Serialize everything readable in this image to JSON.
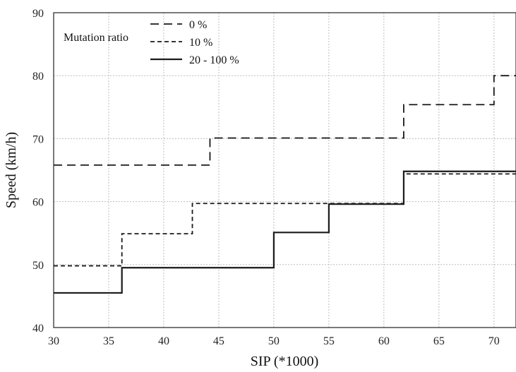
{
  "chart_data": {
    "type": "line",
    "step": "post",
    "title": "",
    "xlabel": "SIP (*1000)",
    "ylabel": "Speed (km/h)",
    "xlim": [
      30,
      72
    ],
    "ylim": [
      40,
      90
    ],
    "xticks": [
      30,
      35,
      40,
      45,
      50,
      55,
      60,
      65,
      70
    ],
    "yticks": [
      40,
      50,
      60,
      70,
      80,
      90
    ],
    "grid": true,
    "legend": {
      "title": "Mutation ratio",
      "placement": "top-left"
    },
    "series": [
      {
        "name": "0 %",
        "style": "long-dash",
        "color": "#1a1a1a",
        "x": [
          30,
          44.2,
          61.8,
          70,
          72
        ],
        "y": [
          65.8,
          70.1,
          75.4,
          80,
          80
        ]
      },
      {
        "name": "10 %",
        "style": "short-dash",
        "color": "#1a1a1a",
        "x": [
          30,
          36.2,
          42.6,
          61.8,
          72
        ],
        "y": [
          49.8,
          54.9,
          59.7,
          64.4,
          64.4
        ]
      },
      {
        "name": "20 - 100 %",
        "style": "solid",
        "color": "#1a1a1a",
        "x": [
          30,
          36.2,
          50,
          55,
          61.8,
          72
        ],
        "y": [
          45.5,
          49.5,
          55.1,
          59.6,
          64.8,
          64.8
        ]
      }
    ]
  }
}
